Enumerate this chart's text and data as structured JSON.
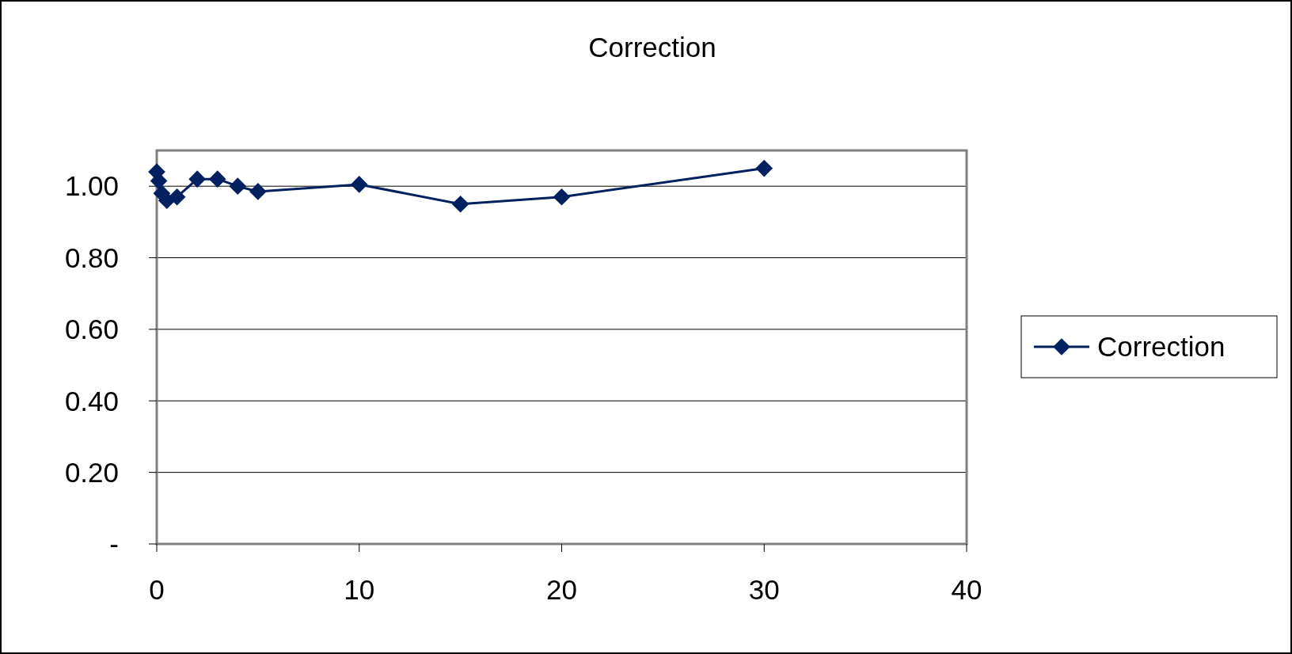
{
  "chart_data": {
    "type": "line",
    "title": "Correction",
    "x": [
      0,
      0.1,
      0.25,
      0.5,
      1,
      2,
      3,
      4,
      5,
      10,
      15,
      20,
      30
    ],
    "series": [
      {
        "name": "Correction",
        "color": "#002060",
        "values": [
          1.04,
          1.015,
          0.98,
          0.96,
          0.97,
          1.02,
          1.02,
          1.0,
          0.985,
          1.005,
          0.95,
          0.97,
          1.05
        ]
      }
    ],
    "xlim": [
      0,
      40
    ],
    "xticks": [
      0,
      10,
      20,
      30,
      40
    ],
    "ylim": [
      0,
      1.1
    ],
    "yticks": [
      {
        "value": 0,
        "label": "-"
      },
      {
        "value": 0.2,
        "label": "0.20"
      },
      {
        "value": 0.4,
        "label": "0.40"
      },
      {
        "value": 0.6,
        "label": "0.60"
      },
      {
        "value": 0.8,
        "label": "0.80"
      },
      {
        "value": 1,
        "label": "1.00"
      }
    ],
    "grid": "y",
    "legend": "right",
    "marker": "diamond",
    "line_style": "solid"
  }
}
